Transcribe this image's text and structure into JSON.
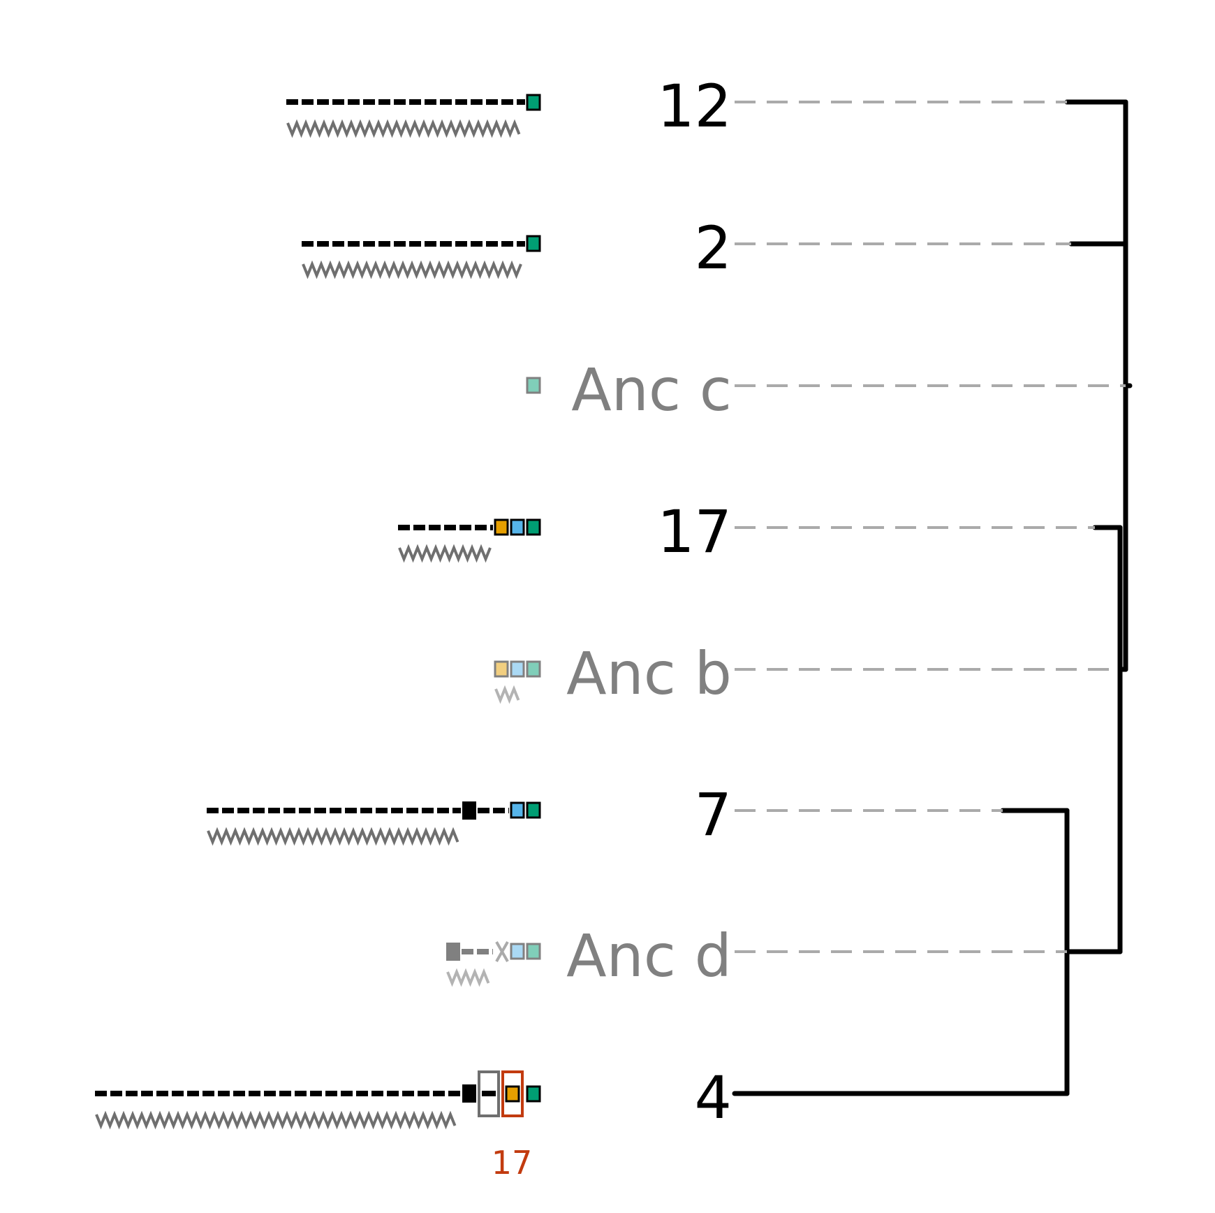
{
  "colors": {
    "black": "#000000",
    "grey": "#808080",
    "dash_grey": "#aaaaaa",
    "orange": "#e69f00",
    "blue": "#56b4e9",
    "green": "#009e73",
    "orange_light": "#f2cf80",
    "blue_light": "#aad9f4",
    "green_light": "#80ceb9",
    "highlight_red": "#c23b0f"
  },
  "rows": [
    {
      "label": "12",
      "kind": "leaf"
    },
    {
      "label": "2",
      "kind": "leaf"
    },
    {
      "label": "Anc c",
      "kind": "ancestor"
    },
    {
      "label": "17",
      "kind": "leaf"
    },
    {
      "label": "Anc b",
      "kind": "ancestor"
    },
    {
      "label": "7",
      "kind": "leaf"
    },
    {
      "label": "Anc d",
      "kind": "ancestor"
    },
    {
      "label": "4",
      "kind": "leaf"
    }
  ],
  "highlight": {
    "label": "17"
  }
}
